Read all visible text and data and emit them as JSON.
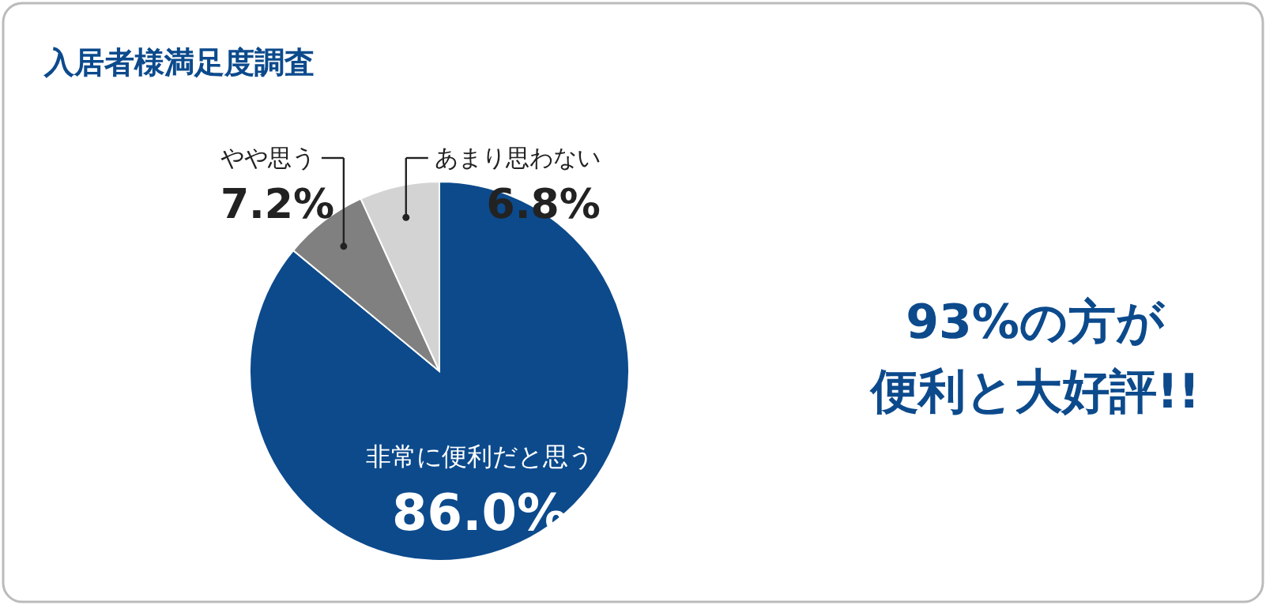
{
  "chart_data": {
    "type": "pie",
    "title": "入居者様満足度調査",
    "categories": [
      "非常に便利だと思う",
      "やや思う",
      "あまり思わない"
    ],
    "values": [
      86.0,
      7.2,
      6.8
    ],
    "colors": [
      "#0c4a8c",
      "#808080",
      "#d3d3d3"
    ],
    "value_labels": [
      "86.0%",
      "7.2%",
      "6.8%"
    ],
    "annotations": [
      "93%の方が",
      "便利と大好評!!"
    ]
  }
}
